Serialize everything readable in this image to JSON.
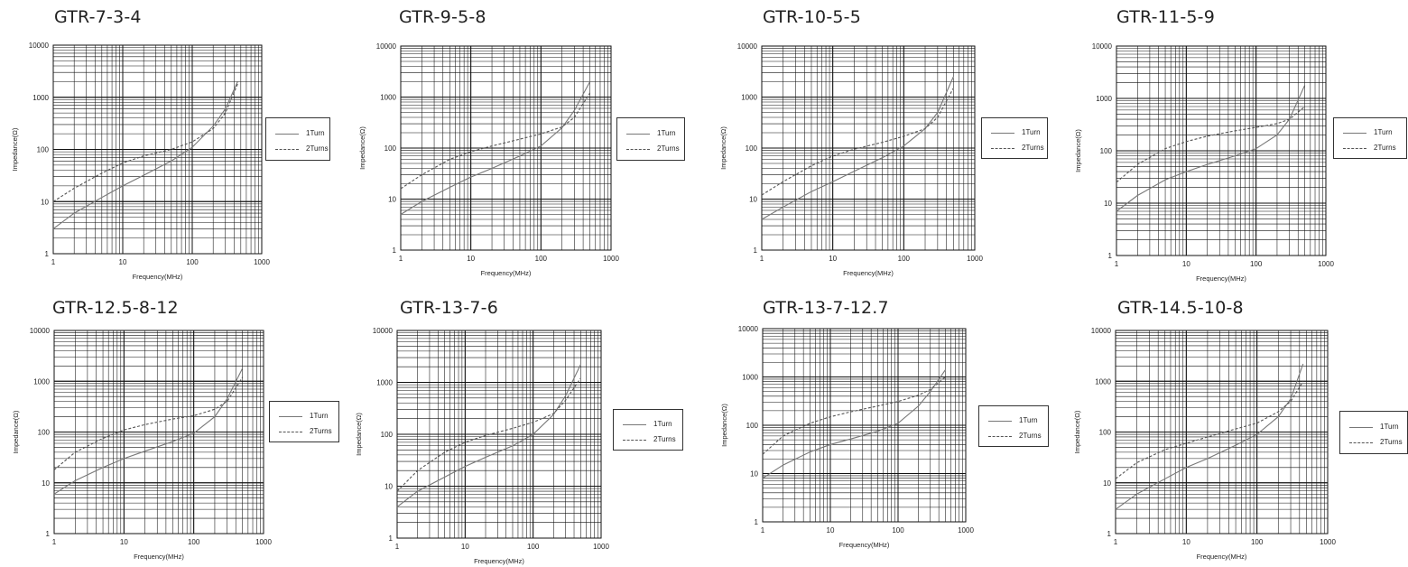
{
  "colors": {
    "one_turn": "#777777",
    "two_turns": "#555555",
    "grid": "#111111"
  },
  "chart_data": [
    {
      "type": "line",
      "title": "GTR-7-3-4",
      "xlabel": "Frequency(MHz)",
      "ylabel": "Impedance(Ω)",
      "x_scale": "log",
      "y_scale": "log",
      "xlim": [
        1,
        1000
      ],
      "ylim": [
        1,
        10000
      ],
      "grid": true,
      "legend_position": "right",
      "x_ticks": [
        "1",
        "10",
        "100",
        "1000"
      ],
      "y_ticks": [
        "1",
        "10",
        "100",
        "1000",
        "10000"
      ],
      "series": [
        {
          "name": "1Turn",
          "style": "solid",
          "x": [
            1,
            2,
            5,
            10,
            20,
            50,
            100,
            200,
            300,
            450
          ],
          "y": [
            3,
            6,
            12,
            20,
            32,
            60,
            110,
            280,
            600,
            2000
          ]
        },
        {
          "name": "2Turns",
          "style": "dashed",
          "x": [
            1,
            2,
            5,
            10,
            20,
            50,
            100,
            200,
            300,
            450
          ],
          "y": [
            10,
            18,
            35,
            55,
            75,
            100,
            140,
            250,
            500,
            1800
          ]
        }
      ]
    },
    {
      "type": "line",
      "title": "GTR-9-5-8",
      "xlabel": "Frequency(MHz)",
      "ylabel": "Impedance(Ω)",
      "x_scale": "log",
      "y_scale": "log",
      "xlim": [
        1,
        1000
      ],
      "ylim": [
        1,
        10000
      ],
      "grid": true,
      "legend_position": "right",
      "x_ticks": [
        "1",
        "10",
        "100",
        "1000"
      ],
      "y_ticks": [
        "1",
        "10",
        "100",
        "1000",
        "10000"
      ],
      "series": [
        {
          "name": "1Turn",
          "style": "solid",
          "x": [
            1,
            2,
            5,
            10,
            20,
            50,
            100,
            200,
            300,
            500
          ],
          "y": [
            5,
            9,
            17,
            27,
            40,
            70,
            110,
            250,
            550,
            2000
          ]
        },
        {
          "name": "2Turns",
          "style": "dashed",
          "x": [
            1,
            2,
            5,
            10,
            20,
            50,
            100,
            200,
            300,
            500
          ],
          "y": [
            16,
            30,
            60,
            85,
            110,
            150,
            190,
            260,
            400,
            1200
          ]
        }
      ]
    },
    {
      "type": "line",
      "title": "GTR-10-5-5",
      "xlabel": "Frequency(MHz)",
      "ylabel": "Impedance(Ω)",
      "x_scale": "log",
      "y_scale": "log",
      "xlim": [
        1,
        1000
      ],
      "ylim": [
        1,
        10000
      ],
      "grid": true,
      "legend_position": "right",
      "x_ticks": [
        "1",
        "10",
        "100",
        "1000"
      ],
      "y_ticks": [
        "1",
        "10",
        "100",
        "1000",
        "10000"
      ],
      "series": [
        {
          "name": "1Turn",
          "style": "solid",
          "x": [
            1,
            2,
            5,
            10,
            20,
            50,
            100,
            200,
            300,
            500
          ],
          "y": [
            4,
            7,
            14,
            22,
            35,
            65,
            110,
            240,
            500,
            2500
          ]
        },
        {
          "name": "2Turns",
          "style": "dashed",
          "x": [
            1,
            2,
            5,
            10,
            20,
            50,
            100,
            200,
            300,
            500
          ],
          "y": [
            12,
            22,
            45,
            70,
            95,
            130,
            170,
            240,
            400,
            1500
          ]
        }
      ]
    },
    {
      "type": "line",
      "title": "GTR-11-5-9",
      "xlabel": "Frequency(MHz)",
      "ylabel": "Impedance(Ω)",
      "x_scale": "log",
      "y_scale": "log",
      "xlim": [
        1,
        1000
      ],
      "ylim": [
        1,
        10000
      ],
      "grid": true,
      "legend_position": "right",
      "x_ticks": [
        "1",
        "10",
        "100",
        "1000"
      ],
      "y_ticks": [
        "1",
        "10",
        "100",
        "1000",
        "10000"
      ],
      "series": [
        {
          "name": "1Turn",
          "style": "solid",
          "x": [
            1,
            2,
            5,
            10,
            20,
            50,
            100,
            200,
            300,
            500
          ],
          "y": [
            7,
            14,
            28,
            40,
            55,
            80,
            110,
            200,
            400,
            1800
          ]
        },
        {
          "name": "2Turns",
          "style": "dashed",
          "x": [
            1,
            2,
            5,
            10,
            20,
            50,
            100,
            200,
            300,
            500
          ],
          "y": [
            25,
            55,
            110,
            150,
            190,
            240,
            280,
            330,
            400,
            700
          ]
        }
      ]
    },
    {
      "type": "line",
      "title": "GTR-12.5-8-12",
      "xlabel": "Frequency(MHz)",
      "ylabel": "Impedance(Ω)",
      "x_scale": "log",
      "y_scale": "log",
      "xlim": [
        1,
        1000
      ],
      "ylim": [
        1,
        10000
      ],
      "grid": true,
      "legend_position": "right",
      "x_ticks": [
        "1",
        "10",
        "100",
        "1000"
      ],
      "y_ticks": [
        "1",
        "10",
        "100",
        "1000",
        "10000"
      ],
      "series": [
        {
          "name": "1Turn",
          "style": "solid",
          "x": [
            1,
            2,
            5,
            10,
            20,
            50,
            100,
            200,
            300,
            500
          ],
          "y": [
            6,
            11,
            20,
            30,
            42,
            65,
            95,
            200,
            450,
            1800
          ]
        },
        {
          "name": "2Turns",
          "style": "dashed",
          "x": [
            1,
            2,
            5,
            10,
            20,
            50,
            100,
            200,
            300,
            500
          ],
          "y": [
            18,
            40,
            75,
            110,
            140,
            180,
            210,
            280,
            400,
            1200
          ]
        }
      ]
    },
    {
      "type": "line",
      "title": "GTR-13-7-6",
      "xlabel": "Frequency(MHz)",
      "ylabel": "Impedance(Ω)",
      "x_scale": "log",
      "y_scale": "log",
      "xlim": [
        1,
        1000
      ],
      "ylim": [
        1,
        10000
      ],
      "grid": true,
      "legend_position": "right",
      "x_ticks": [
        "1",
        "10",
        "100",
        "1000"
      ],
      "y_ticks": [
        "1",
        "10",
        "100",
        "1000",
        "10000"
      ],
      "series": [
        {
          "name": "1Turn",
          "style": "solid",
          "x": [
            1,
            2,
            5,
            10,
            20,
            50,
            100,
            200,
            300,
            500
          ],
          "y": [
            4,
            8,
            15,
            24,
            36,
            60,
            100,
            240,
            550,
            2200
          ]
        },
        {
          "name": "2Turns",
          "style": "dashed",
          "x": [
            1,
            2,
            5,
            10,
            20,
            50,
            100,
            200,
            300,
            500
          ],
          "y": [
            8,
            20,
            45,
            70,
            95,
            130,
            170,
            250,
            450,
            1200
          ]
        }
      ]
    },
    {
      "type": "line",
      "title": "GTR-13-7-12.7",
      "xlabel": "Frequency(MHz)",
      "ylabel": "Impedance(Ω)",
      "x_scale": "log",
      "y_scale": "log",
      "xlim": [
        1,
        1000
      ],
      "ylim": [
        1,
        10000
      ],
      "grid": true,
      "legend_position": "right",
      "x_ticks": [
        "1",
        "10",
        "100",
        "1000"
      ],
      "y_ticks": [
        "1",
        "10",
        "100",
        "1000",
        "10000"
      ],
      "series": [
        {
          "name": "1Turn",
          "style": "solid",
          "x": [
            1,
            2,
            5,
            10,
            20,
            50,
            100,
            200,
            300,
            500
          ],
          "y": [
            8,
            15,
            28,
            40,
            52,
            75,
            110,
            250,
            500,
            1400
          ]
        },
        {
          "name": "2Turns",
          "style": "dashed",
          "x": [
            1,
            2,
            5,
            10,
            20,
            50,
            100,
            200,
            300,
            500
          ],
          "y": [
            25,
            60,
            110,
            150,
            190,
            250,
            310,
            420,
            550,
            1000
          ]
        }
      ]
    },
    {
      "type": "line",
      "title": "GTR-14.5-10-8",
      "xlabel": "Frequency(MHz)",
      "ylabel": "Impedance(Ω)",
      "x_scale": "log",
      "y_scale": "log",
      "xlim": [
        1,
        1000
      ],
      "ylim": [
        1,
        10000
      ],
      "grid": true,
      "legend_position": "right",
      "x_ticks": [
        "1",
        "10",
        "100",
        "1000"
      ],
      "y_ticks": [
        "1",
        "10",
        "100",
        "1000",
        "10000"
      ],
      "series": [
        {
          "name": "1Turn",
          "style": "solid",
          "x": [
            1,
            2,
            5,
            10,
            20,
            50,
            100,
            200,
            300,
            450
          ],
          "y": [
            3,
            6,
            12,
            20,
            30,
            55,
            90,
            200,
            450,
            2200
          ]
        },
        {
          "name": "2Turns",
          "style": "dashed",
          "x": [
            1,
            2,
            5,
            10,
            20,
            50,
            100,
            200,
            300,
            450
          ],
          "y": [
            12,
            25,
            45,
            60,
            80,
            115,
            150,
            250,
            400,
            1000
          ]
        }
      ]
    }
  ]
}
